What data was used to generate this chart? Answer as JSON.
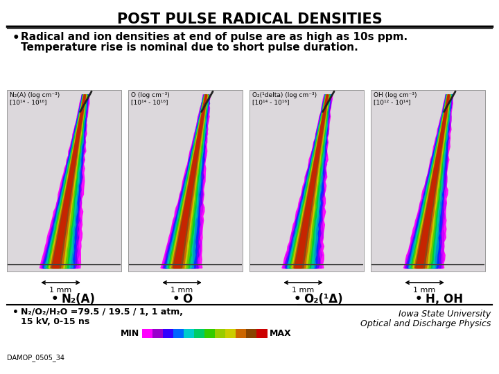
{
  "title": "POST PULSE RADICAL DENSITIES",
  "title_fontsize": 15,
  "bg_color": "#ffffff",
  "bullet1_line1": "Radical and ion densities at end of pulse are as high as 10s ppm.",
  "bullet1_line2": "Temperature rise is nominal due to short pulse duration.",
  "panel_labels": [
    "N₂(A)",
    "O",
    "O₂(¹Δ)",
    "H, OH"
  ],
  "panel_top_label_lines": [
    [
      "N₂(A) (log cm⁻³)",
      "[10¹⁴ - 10¹⁶]"
    ],
    [
      "O (log cm⁻³)",
      "[10¹⁴ - 10¹⁶]"
    ],
    [
      "O₂(¹delta) (log cm⁻³)",
      "[10¹⁴ - 10¹⁶]"
    ],
    [
      "OH (log cm⁻³)",
      "[10¹² - 10¹⁴]"
    ]
  ],
  "footnote_bullet": "N₂/O₂/H₂O =79.5 / 19.5 / 1, 1 atm,",
  "footnote_line2": "15 kV, 0-15 ns",
  "min_label": "MIN",
  "max_label": "MAX",
  "iowa_line1": "Iowa State University",
  "iowa_line2": "Optical and Discharge Physics",
  "damop_label": "DAMOP_0505_34",
  "colorbar_colors": [
    "#ff00ff",
    "#9900cc",
    "#3300ff",
    "#0066ff",
    "#00cccc",
    "#00cc66",
    "#33cc00",
    "#99cc00",
    "#cccc00",
    "#cc6600",
    "#884400",
    "#cc0000"
  ],
  "scale_label": "1 mm",
  "panel_bg": "#dcd8dc",
  "slide_bg": "#ffffff"
}
